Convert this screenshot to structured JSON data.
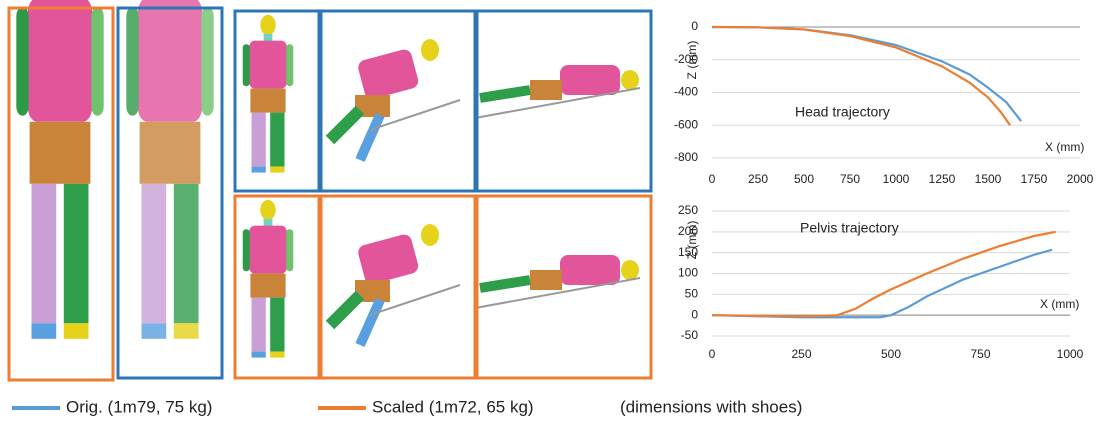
{
  "chart_data": [
    {
      "type": "line",
      "title": "Head trajectory",
      "xlabel": "X (mm)",
      "ylabel": "Z (mm)",
      "xlim": [
        0,
        2000
      ],
      "xticks": [
        0,
        250,
        500,
        750,
        1000,
        1250,
        1500,
        1750,
        2000
      ],
      "ylim": [
        -800,
        0
      ],
      "yticks": [
        -800,
        -600,
        -400,
        -200,
        0
      ],
      "grid": true,
      "series": [
        {
          "name": "Orig. (1m79, 75 kg)",
          "color": "#5b9bd5",
          "x": [
            0,
            250,
            500,
            750,
            1000,
            1250,
            1400,
            1500,
            1600,
            1680
          ],
          "values": [
            0,
            -2,
            -15,
            -50,
            -110,
            -210,
            -290,
            -370,
            -460,
            -575
          ]
        },
        {
          "name": "Scaled (1m72, 65 kg)",
          "color": "#ed7d31",
          "x": [
            0,
            250,
            500,
            750,
            1000,
            1250,
            1400,
            1500,
            1570,
            1620
          ],
          "values": [
            0,
            -2,
            -15,
            -55,
            -125,
            -240,
            -340,
            -430,
            -520,
            -600
          ]
        }
      ]
    },
    {
      "type": "line",
      "title": "Pelvis trajectory",
      "xlabel": "X (mm)",
      "ylabel": "Z (mm)",
      "xlim": [
        0,
        1000
      ],
      "xticks": [
        0,
        250,
        500,
        750,
        1000
      ],
      "ylim": [
        -50,
        250
      ],
      "yticks": [
        -50,
        0,
        50,
        100,
        150,
        200,
        250
      ],
      "grid": true,
      "series": [
        {
          "name": "Orig. (1m79, 75 kg)",
          "color": "#5b9bd5",
          "x": [
            0,
            250,
            400,
            470,
            500,
            550,
            600,
            700,
            800,
            900,
            950
          ],
          "values": [
            0,
            -5,
            -5,
            -5,
            0,
            20,
            45,
            85,
            115,
            145,
            157
          ]
        },
        {
          "name": "Scaled (1m72, 65 kg)",
          "color": "#ed7d31",
          "x": [
            0,
            250,
            350,
            400,
            450,
            500,
            600,
            700,
            800,
            900,
            960
          ],
          "values": [
            0,
            -3,
            0,
            15,
            40,
            62,
            100,
            135,
            165,
            190,
            200
          ]
        }
      ]
    }
  ],
  "legend_note": "(dimensions with shoes)"
}
